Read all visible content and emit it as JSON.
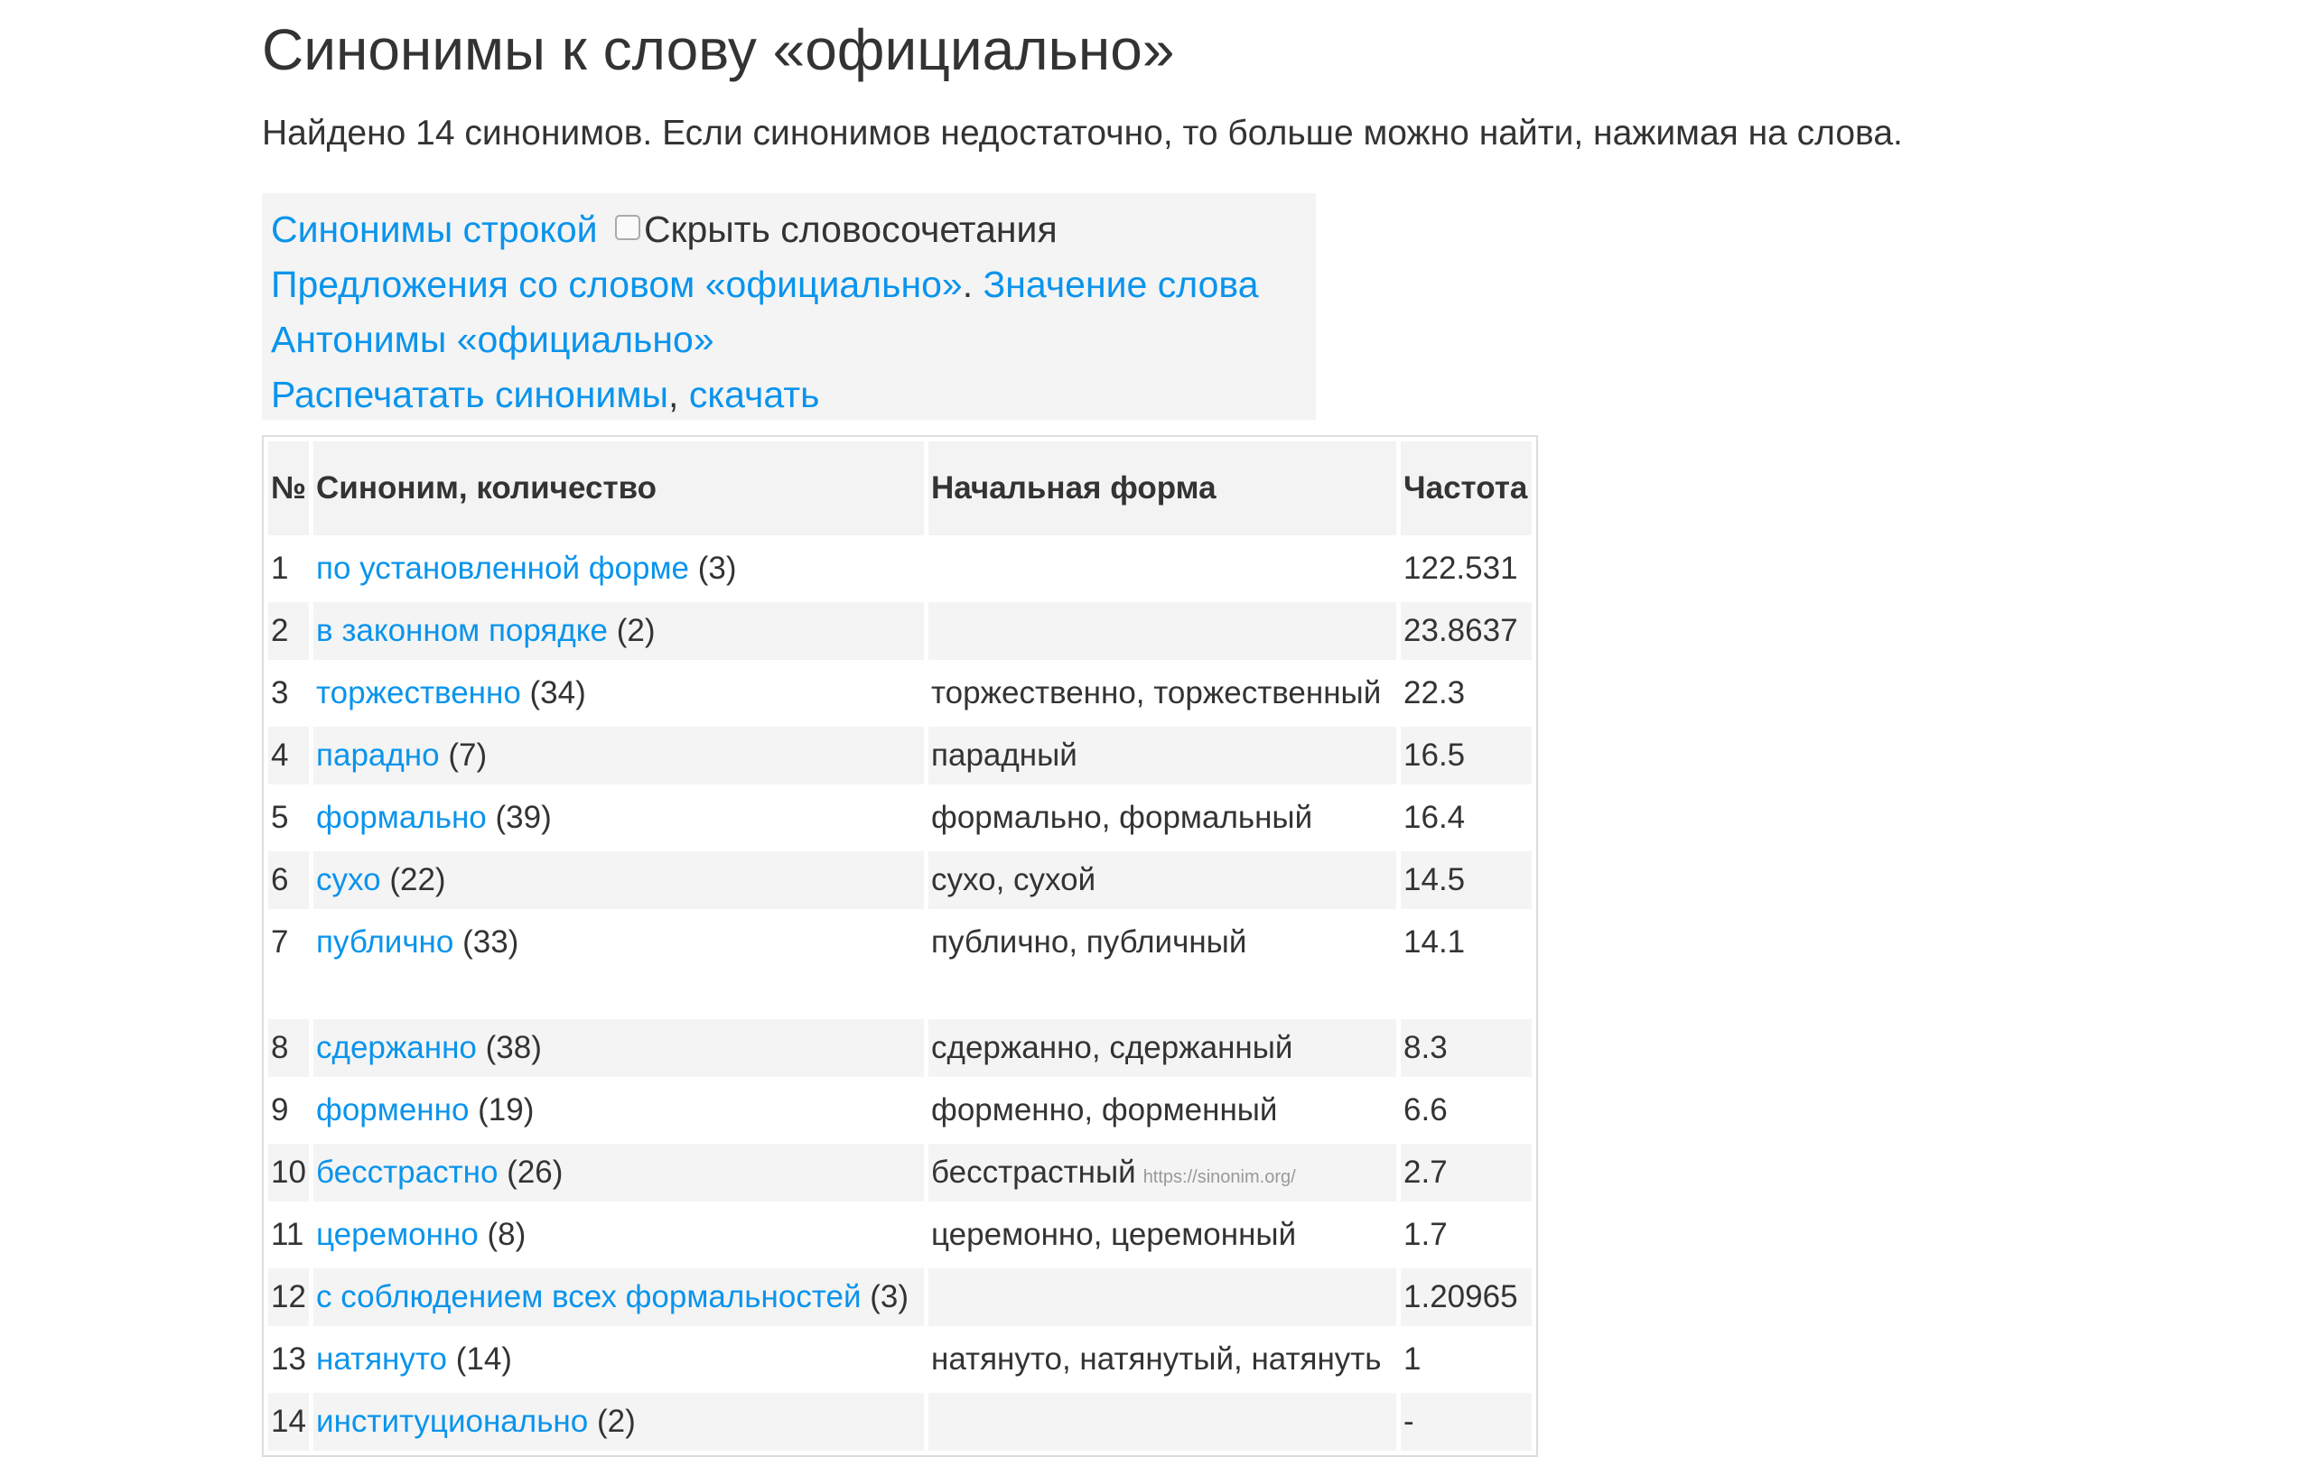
{
  "title": "Синонимы к слову «официально»",
  "intro": "Найдено 14 синонимов. Если синонимов недостаточно, то больше можно найти, нажимая на слова.",
  "links": {
    "synonyms_inline": "Синонимы строкой",
    "hide_phrases": "Скрыть словосочетания",
    "hide_phrases_checked": false,
    "sentences": "Предложения со словом «официально»",
    "sep_dot": ".",
    "meaning": "Значение слова",
    "antonyms": "Антонимы «официально»",
    "print": "Распечатать синонимы",
    "sep_comma": ",",
    "download": "скачать"
  },
  "table": {
    "headers": [
      "№",
      "Синоним, количество",
      "Начальная форма",
      "Частота"
    ],
    "rows": [
      {
        "n": "1",
        "word": "по установленной форме",
        "count": "(3)",
        "form": "",
        "freq": "122.531"
      },
      {
        "n": "2",
        "word": "в законном порядке",
        "count": "(2)",
        "form": "",
        "freq": "23.8637"
      },
      {
        "n": "3",
        "word": "торжественно",
        "count": "(34)",
        "form": "торжественно, торжественный",
        "freq": "22.3"
      },
      {
        "n": "4",
        "word": "парадно",
        "count": "(7)",
        "form": "парадный",
        "freq": "16.5"
      },
      {
        "n": "5",
        "word": "формально",
        "count": "(39)",
        "form": "формально, формальный",
        "freq": "16.4"
      },
      {
        "n": "6",
        "word": "сухо",
        "count": "(22)",
        "form": "сухо, сухой",
        "freq": "14.5"
      },
      {
        "n": "7",
        "word": "публично",
        "count": "(33)",
        "form": "публично, публичный",
        "freq": "14.1"
      },
      {
        "n": "8",
        "word": "сдержанно",
        "count": "(38)",
        "form": "сдержанно, сдержанный",
        "freq": "8.3"
      },
      {
        "n": "9",
        "word": "форменно",
        "count": "(19)",
        "form": "форменно, форменный",
        "freq": "6.6"
      },
      {
        "n": "10",
        "word": "бесстрастно",
        "count": "(26)",
        "form": "бесстрастный",
        "source": "https://sinonim.org/",
        "freq": "2.7"
      },
      {
        "n": "11",
        "word": "церемонно",
        "count": "(8)",
        "form": "церемонно, церемонный",
        "freq": "1.7"
      },
      {
        "n": "12",
        "word": "с соблюдением всех формальностей",
        "count": "(3)",
        "form": "",
        "freq": "1.20965"
      },
      {
        "n": "13",
        "word": "натянуто",
        "count": "(14)",
        "form": "натянуто, натянутый, натянуть",
        "freq": "1"
      },
      {
        "n": "14",
        "word": "институционально",
        "count": "(2)",
        "form": "",
        "freq": "-"
      }
    ]
  }
}
